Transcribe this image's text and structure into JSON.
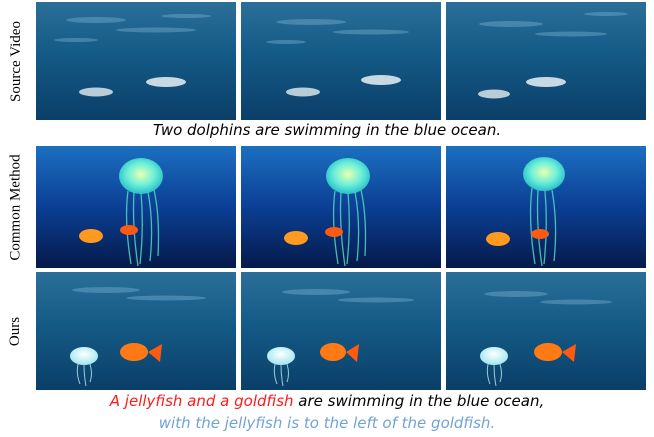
{
  "rows": [
    {
      "label": "Source Video"
    },
    {
      "label": "Common Method"
    },
    {
      "label": "Ours"
    }
  ],
  "caption_source": "Two dolphins are swimming in the blue ocean.",
  "caption_ours": {
    "highlight": "A jellyfish and a goldfish",
    "rest_line1": " are swimming in the blue ocean,",
    "line2": "with the jellyfish is to the left of the goldfish."
  },
  "colors": {
    "highlight": "#ff1a1a",
    "line2": "#6fa3d8",
    "ocean": "#0d4a78"
  }
}
